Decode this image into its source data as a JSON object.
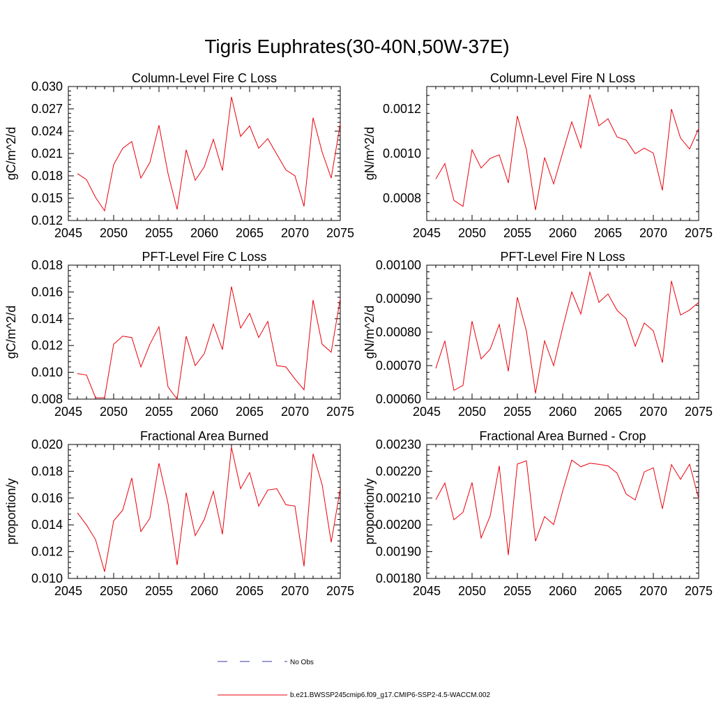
{
  "main_title": "Tigris Euphrates(30-40N,50W-37E)",
  "colors": {
    "model_line": "#e8000b",
    "obs_line": "#3a3aa8",
    "axis": "#000000"
  },
  "legend": {
    "obs_label": "No Obs",
    "model_label": "b.e21.BWSSP245cmip6.f09_g17.CMIP6-SSP2-4.5-WACCM.002"
  },
  "chart_data": [
    {
      "type": "line",
      "title": "Column-Level Fire C Loss",
      "ylabel": "gC/m^2/d",
      "xlim": [
        2045,
        2075
      ],
      "ylim": [
        0.012,
        0.03
      ],
      "x_ticks": [
        2045,
        2050,
        2055,
        2060,
        2065,
        2070,
        2075
      ],
      "y_ticks": [
        "0.012",
        "0.015",
        "0.018",
        "0.021",
        "0.024",
        "0.027",
        "0.030"
      ],
      "series": [
        {
          "x": [
            2046,
            2047,
            2048,
            2049,
            2050,
            2051,
            2052,
            2053,
            2054,
            2055,
            2056,
            2057,
            2058,
            2059,
            2060,
            2061,
            2062,
            2063,
            2064,
            2065,
            2066,
            2067,
            2068,
            2069,
            2070,
            2071,
            2072,
            2073,
            2074,
            2075
          ],
          "values": [
            0.0183,
            0.0175,
            0.0151,
            0.0133,
            0.0195,
            0.0217,
            0.0226,
            0.0177,
            0.0198,
            0.0248,
            0.0183,
            0.0135,
            0.0215,
            0.0174,
            0.0192,
            0.0229,
            0.0187,
            0.0286,
            0.0233,
            0.0247,
            0.0217,
            0.023,
            0.0209,
            0.0188,
            0.018,
            0.0139,
            0.0258,
            0.0212,
            0.0177,
            0.025
          ]
        }
      ]
    },
    {
      "type": "line",
      "title": "Column-Level Fire N Loss",
      "ylabel": "gN/m^2/d",
      "xlim": [
        2045,
        2075
      ],
      "ylim": [
        0.0007,
        0.0013
      ],
      "x_ticks": [
        2045,
        2050,
        2055,
        2060,
        2065,
        2070,
        2075
      ],
      "y_ticks": [
        "0.0008",
        "0.0010",
        "0.0012"
      ],
      "series": [
        {
          "x": [
            2046,
            2047,
            2048,
            2049,
            2050,
            2051,
            2052,
            2053,
            2054,
            2055,
            2056,
            2057,
            2058,
            2059,
            2060,
            2061,
            2062,
            2063,
            2064,
            2065,
            2066,
            2067,
            2068,
            2069,
            2070,
            2071,
            2072,
            2073,
            2074,
            2075
          ],
          "values": [
            0.000886,
            0.000955,
            0.00079,
            0.000763,
            0.001017,
            0.000935,
            0.000978,
            0.000994,
            0.000868,
            0.001168,
            0.001017,
            0.000747,
            0.000982,
            0.000864,
            0.001004,
            0.001142,
            0.001026,
            0.001264,
            0.001124,
            0.001156,
            0.001074,
            0.00106,
            0.000999,
            0.001024,
            0.001002,
            0.000835,
            0.001199,
            0.001069,
            0.00102,
            0.001112
          ]
        }
      ]
    },
    {
      "type": "line",
      "title": "PFT-Level Fire C Loss",
      "ylabel": "gC/m^2/d",
      "xlim": [
        2045,
        2075
      ],
      "ylim": [
        0.008,
        0.018
      ],
      "x_ticks": [
        2045,
        2050,
        2055,
        2060,
        2065,
        2070,
        2075
      ],
      "y_ticks": [
        "0.008",
        "0.010",
        "0.012",
        "0.014",
        "0.016",
        "0.018"
      ],
      "series": [
        {
          "x": [
            2046,
            2047,
            2048,
            2049,
            2050,
            2051,
            2052,
            2053,
            2054,
            2055,
            2056,
            2057,
            2058,
            2059,
            2060,
            2061,
            2062,
            2063,
            2064,
            2065,
            2066,
            2067,
            2068,
            2069,
            2070,
            2071,
            2072,
            2073,
            2074,
            2075
          ],
          "values": [
            0.0099,
            0.0098,
            0.0081,
            0.0081,
            0.0121,
            0.0127,
            0.0126,
            0.0104,
            0.0121,
            0.0134,
            0.0089,
            0.008,
            0.0127,
            0.0105,
            0.0114,
            0.0136,
            0.0117,
            0.0164,
            0.0133,
            0.0144,
            0.0126,
            0.0138,
            0.0105,
            0.0104,
            0.0095,
            0.0087,
            0.0154,
            0.0121,
            0.0115,
            0.0155
          ]
        }
      ]
    },
    {
      "type": "line",
      "title": "PFT-Level Fire N Loss",
      "ylabel": "gN/m^2/d",
      "xlim": [
        2045,
        2075
      ],
      "ylim": [
        0.0006,
        0.001
      ],
      "x_ticks": [
        2045,
        2050,
        2055,
        2060,
        2065,
        2070,
        2075
      ],
      "y_ticks": [
        "0.00060",
        "0.00070",
        "0.00080",
        "0.00090",
        "0.00100"
      ],
      "series": [
        {
          "x": [
            2046,
            2047,
            2048,
            2049,
            2050,
            2051,
            2052,
            2053,
            2054,
            2055,
            2056,
            2057,
            2058,
            2059,
            2060,
            2061,
            2062,
            2063,
            2064,
            2065,
            2066,
            2067,
            2068,
            2069,
            2070,
            2071,
            2072,
            2073,
            2074,
            2075
          ],
          "values": [
            0.000692,
            0.000774,
            0.000626,
            0.000641,
            0.000833,
            0.00072,
            0.000749,
            0.000823,
            0.000683,
            0.000904,
            0.000803,
            0.000617,
            0.000774,
            0.0007,
            0.000813,
            0.00092,
            0.000854,
            0.000979,
            0.000889,
            0.000914,
            0.000865,
            0.00084,
            0.000758,
            0.000827,
            0.000804,
            0.000709,
            0.000953,
            0.000851,
            0.000866,
            0.000889
          ]
        }
      ]
    },
    {
      "type": "line",
      "title": "Fractional Area Burned",
      "ylabel": "proportion/y",
      "xlim": [
        2045,
        2075
      ],
      "ylim": [
        0.01,
        0.02
      ],
      "x_ticks": [
        2045,
        2050,
        2055,
        2060,
        2065,
        2070,
        2075
      ],
      "y_ticks": [
        "0.010",
        "0.012",
        "0.014",
        "0.016",
        "0.018",
        "0.020"
      ],
      "series": [
        {
          "x": [
            2046,
            2047,
            2048,
            2049,
            2050,
            2051,
            2052,
            2053,
            2054,
            2055,
            2056,
            2057,
            2058,
            2059,
            2060,
            2061,
            2062,
            2063,
            2064,
            2065,
            2066,
            2067,
            2068,
            2069,
            2070,
            2071,
            2072,
            2073,
            2074,
            2075
          ],
          "values": [
            0.0149,
            0.014,
            0.0129,
            0.0105,
            0.0143,
            0.0151,
            0.0175,
            0.0135,
            0.0145,
            0.0186,
            0.0156,
            0.011,
            0.0164,
            0.0132,
            0.0144,
            0.0165,
            0.0133,
            0.0198,
            0.0167,
            0.0179,
            0.0154,
            0.0166,
            0.0167,
            0.0155,
            0.0154,
            0.0109,
            0.0193,
            0.017,
            0.0127,
            0.0167
          ]
        }
      ]
    },
    {
      "type": "line",
      "title": "Fractional Area Burned - Crop",
      "ylabel": "proportion/y",
      "xlim": [
        2045,
        2075
      ],
      "ylim": [
        0.0018,
        0.0023
      ],
      "x_ticks": [
        2045,
        2050,
        2055,
        2060,
        2065,
        2070,
        2075
      ],
      "y_ticks": [
        "0.00180",
        "0.00190",
        "0.00200",
        "0.00210",
        "0.00220",
        "0.00230"
      ],
      "series": [
        {
          "x": [
            2046,
            2047,
            2048,
            2049,
            2050,
            2051,
            2052,
            2053,
            2054,
            2055,
            2056,
            2057,
            2058,
            2059,
            2060,
            2061,
            2062,
            2063,
            2064,
            2065,
            2066,
            2067,
            2068,
            2069,
            2070,
            2071,
            2072,
            2073,
            2074,
            2075
          ],
          "values": [
            0.002094,
            0.002156,
            0.002019,
            0.002047,
            0.002158,
            0.001951,
            0.002033,
            0.00222,
            0.001887,
            0.002227,
            0.002239,
            0.001939,
            0.002031,
            0.002001,
            0.002126,
            0.002242,
            0.002217,
            0.00223,
            0.002226,
            0.00222,
            0.002193,
            0.002115,
            0.002093,
            0.002198,
            0.002213,
            0.00206,
            0.002225,
            0.00217,
            0.002226,
            0.002099
          ]
        }
      ]
    }
  ]
}
